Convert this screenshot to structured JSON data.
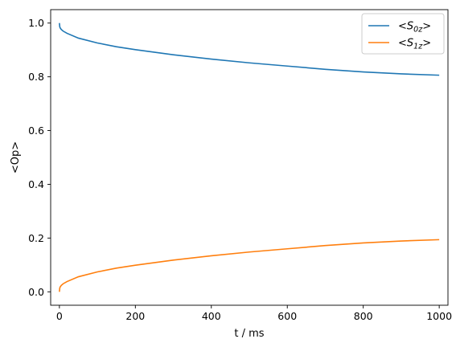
{
  "chart_data": {
    "type": "line",
    "title": "",
    "xlabel": "t / ms",
    "ylabel": "<Op>",
    "xlim": [
      -23,
      1023
    ],
    "ylim": [
      -0.05,
      1.05
    ],
    "xticks": [
      0,
      200,
      400,
      600,
      800,
      1000
    ],
    "yticks": [
      0.0,
      0.2,
      0.4,
      0.6,
      0.8,
      1.0
    ],
    "xtick_labels": [
      "0",
      "200",
      "400",
      "600",
      "800",
      "1000"
    ],
    "ytick_labels": [
      "0.0",
      "0.2",
      "0.4",
      "0.6",
      "0.8",
      "1.0"
    ],
    "grid": false,
    "legend_position": "top-right",
    "x": [
      0,
      1,
      2,
      5,
      10,
      20,
      50,
      100,
      150,
      200,
      300,
      400,
      500,
      600,
      700,
      800,
      900,
      1000
    ],
    "series": [
      {
        "name": "<S0z>",
        "legend_main": "<S",
        "legend_sub": "0z",
        "legend_tail": ">",
        "color": "#1f77b4",
        "values": [
          1.0,
          0.986,
          0.982,
          0.976,
          0.97,
          0.962,
          0.944,
          0.926,
          0.912,
          0.901,
          0.882,
          0.866,
          0.852,
          0.84,
          0.828,
          0.818,
          0.811,
          0.806
        ]
      },
      {
        "name": "<S1z>",
        "legend_main": "<S",
        "legend_sub": "1z",
        "legend_tail": ">",
        "color": "#ff7f0e",
        "values": [
          0.0,
          0.014,
          0.018,
          0.024,
          0.03,
          0.038,
          0.056,
          0.074,
          0.088,
          0.099,
          0.118,
          0.134,
          0.148,
          0.16,
          0.172,
          0.182,
          0.189,
          0.194
        ]
      }
    ]
  }
}
